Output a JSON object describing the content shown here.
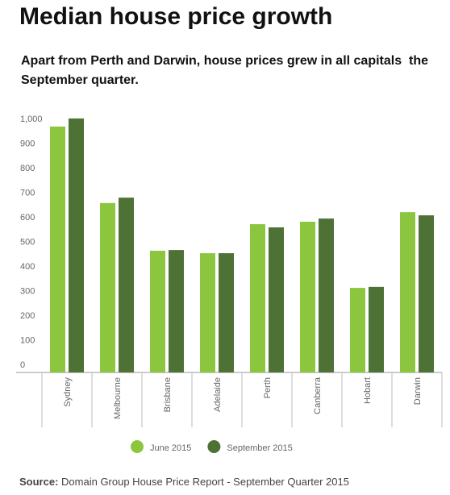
{
  "chart_data": {
    "type": "bar",
    "title": "Median house price growth",
    "subtitle": "Apart from Perth and Darwin, house prices grew in all capitals  the September quarter.",
    "categories": [
      "Sydney",
      "Melbourne",
      "Brisbane",
      "Adelaide",
      "Perth",
      "Canberra",
      "Hobart",
      "Darwin"
    ],
    "series": [
      {
        "name": "June 2015",
        "color": "#8cc63f",
        "values": [
          1000,
          689,
          495,
          485,
          603,
          613,
          344,
          652
        ]
      },
      {
        "name": "September 2015",
        "color": "#4e7236",
        "values": [
          1033,
          711,
          498,
          485,
          590,
          626,
          348,
          639
        ]
      }
    ],
    "ylim": [
      0,
      1060
    ],
    "yticks": [
      0,
      100,
      200,
      300,
      400,
      500,
      600,
      700,
      800,
      900,
      {
        "value": 1000,
        "label": "1,000"
      }
    ],
    "grid": false,
    "legend": "bottom",
    "source_label": "Source:",
    "source": "Domain Group House Price Report - September Quarter 2015"
  }
}
